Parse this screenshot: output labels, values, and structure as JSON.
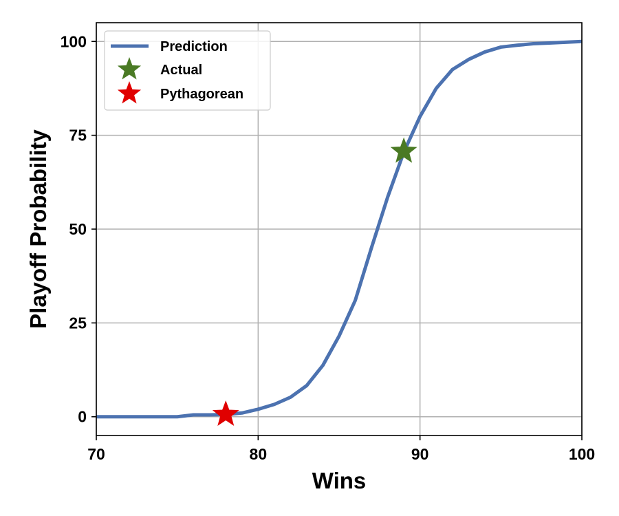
{
  "chart_data": {
    "type": "line",
    "title": "",
    "xlabel": "Wins",
    "ylabel": "Playoff Probability",
    "xlim": [
      70,
      100
    ],
    "ylim": [
      -5,
      105
    ],
    "xticks": [
      70,
      80,
      90,
      100
    ],
    "yticks": [
      0,
      25,
      50,
      75,
      100
    ],
    "xtick_labels": [
      "70",
      "80",
      "90",
      "100"
    ],
    "ytick_labels": [
      "0",
      "25",
      "50",
      "75",
      "100"
    ],
    "grid": true,
    "legend_position": "top-left",
    "series": [
      {
        "name": "Prediction",
        "color": "#4c72b0",
        "x": [
          70,
          71,
          72,
          73,
          74,
          75,
          76,
          77,
          78,
          79,
          80,
          81,
          82,
          83,
          84,
          85,
          86,
          87,
          88,
          89,
          90,
          91,
          92,
          93,
          94,
          95,
          96,
          97,
          98,
          99,
          100
        ],
        "y": [
          0,
          0,
          0,
          0,
          0,
          0,
          0.5,
          0.5,
          0.6,
          1.0,
          2.0,
          3.3,
          5.2,
          8.3,
          13.7,
          21.5,
          31.0,
          45.0,
          58.5,
          70.5,
          80.0,
          87.5,
          92.5,
          95.2,
          97.2,
          98.5,
          99.0,
          99.4,
          99.6,
          99.8,
          100
        ]
      }
    ],
    "points": [
      {
        "name": "Actual",
        "x": 89,
        "y": 70.7,
        "color": "#4a7a24",
        "marker": "star"
      },
      {
        "name": "Pythagorean",
        "x": 78,
        "y": 0.6,
        "color": "#e00000",
        "marker": "star"
      }
    ]
  }
}
